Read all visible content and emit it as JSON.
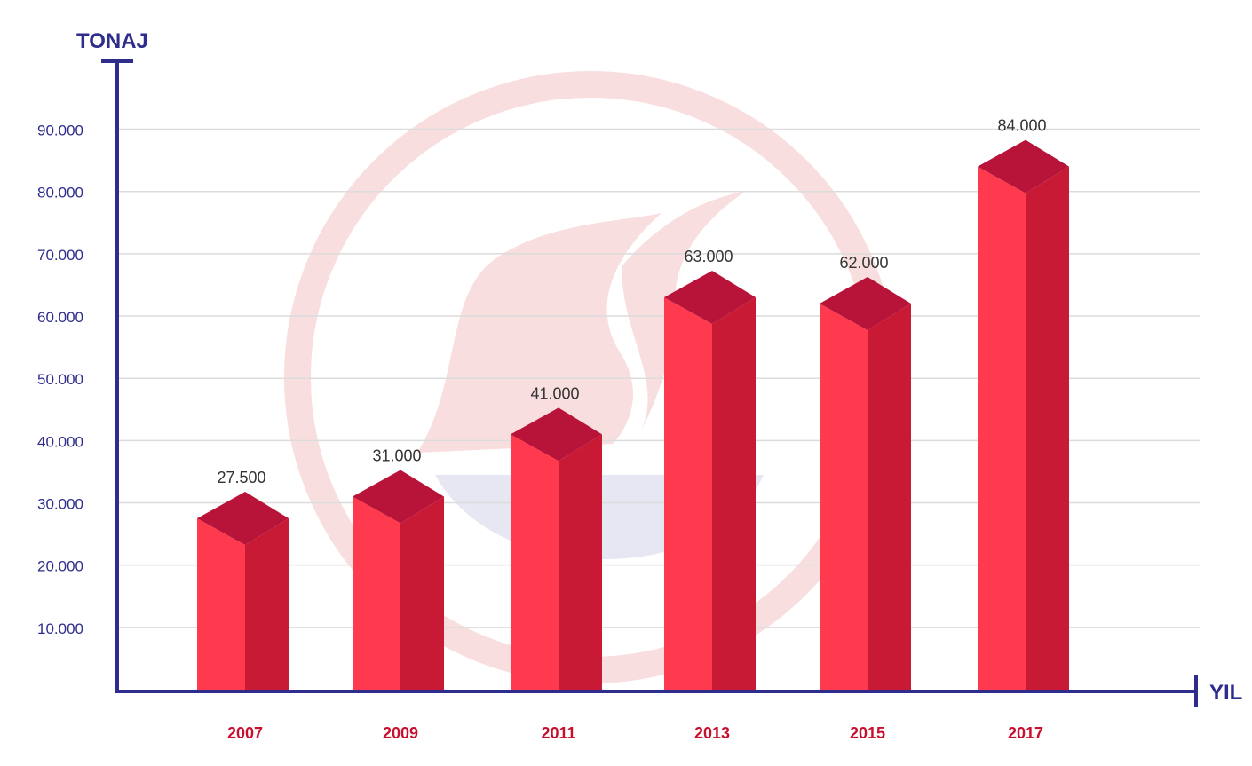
{
  "chart_data": {
    "type": "bar",
    "ylabel": "TONAJ",
    "xlabel": "YIL",
    "categories": [
      "2007",
      "2009",
      "2011",
      "2013",
      "2015",
      "2017"
    ],
    "values": [
      27500,
      31000,
      41000,
      63000,
      62000,
      84000
    ],
    "data_labels": [
      "27.500",
      "31.000",
      "41.000",
      "63.000",
      "62.000",
      "84.000"
    ],
    "y_ticks": [
      10000,
      20000,
      30000,
      40000,
      50000,
      60000,
      70000,
      80000,
      90000
    ],
    "y_tick_labels": [
      "10.000",
      "20.000",
      "30.000",
      "40.000",
      "50.000",
      "60.000",
      "70.000",
      "80.000",
      "90.000"
    ],
    "ylim": [
      0,
      90000
    ],
    "grid": true,
    "bar_style": "3d",
    "colors": {
      "axis": "#2e2d8c",
      "tick_label": "#2e2d8c",
      "category_label": "#c8102e",
      "bar_front": "#ff3a4e",
      "bar_side": "#c91a35",
      "bar_top": "#b8143a",
      "value_label": "#333333",
      "grid": "#dcdcdc",
      "watermark": "#f8dede"
    }
  }
}
